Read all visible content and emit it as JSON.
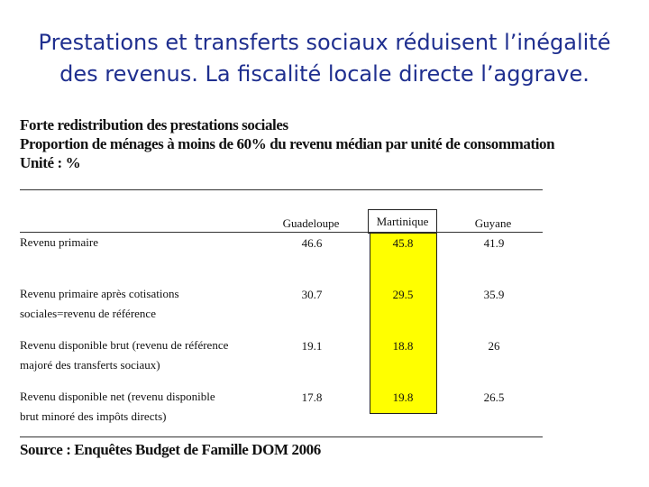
{
  "slide": {
    "title_line1": "Prestations et transferts sociaux réduisent l’inégalité",
    "title_line2": "des revenus. La fiscalité locale directe l’aggrave."
  },
  "document": {
    "heading1": "Forte redistribution des prestations sociales",
    "heading2": "Proportion de ménages à moins de 60% du revenu médian par unité de consommation",
    "heading3": "Unité : %",
    "columns": [
      "Guadeloupe",
      "Martinique",
      "Guyane"
    ],
    "highlight_color": "#ffff00",
    "rows": [
      {
        "label_line1": "Revenu primaire",
        "label_line2": "",
        "values": [
          "46.6",
          "45.8",
          "41.9"
        ]
      },
      {
        "label_line1": "Revenu primaire après cotisations",
        "label_line2": "sociales=revenu de référence",
        "values": [
          "30.7",
          "29.5",
          "35.9"
        ]
      },
      {
        "label_line1": "Revenu disponible brut (revenu de référence",
        "label_line2": "majoré des transferts sociaux)",
        "values": [
          "19.1",
          "18.8",
          "26"
        ]
      },
      {
        "label_line1": "Revenu disponible net (revenu disponible",
        "label_line2": "brut minoré des impôts directs)",
        "values": [
          "17.8",
          "19.8",
          "26.5"
        ]
      }
    ],
    "source": "Source : Enquêtes Budget de Famille DOM 2006"
  }
}
